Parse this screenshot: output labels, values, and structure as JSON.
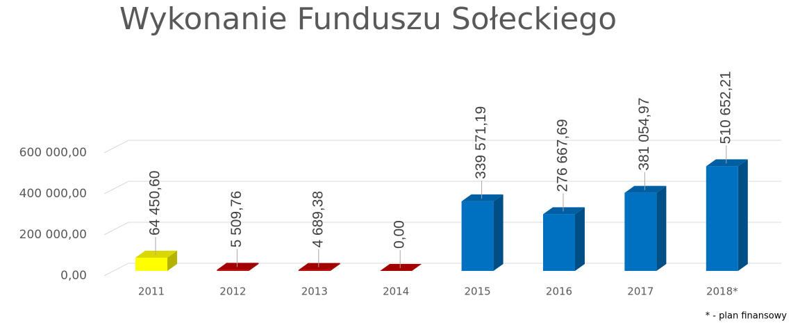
{
  "chart_data": {
    "type": "bar3d",
    "title": "Wykonanie Funduszu Sołeckiego",
    "categories": [
      "2011",
      "2012",
      "2013",
      "2014",
      "2015",
      "2016",
      "2017",
      "2018*"
    ],
    "values": [
      64450.6,
      5509.76,
      4689.38,
      0,
      339571.19,
      276667.69,
      381054.97,
      510652.21
    ],
    "value_labels": [
      "64 450,60",
      "5 509,76",
      "4 689,38",
      "0,00",
      "339 571,19",
      "276 667,69",
      "381 054,97",
      "510 652,21"
    ],
    "colors": [
      "#ffff00",
      "#c00000",
      "#c00000",
      "#c00000",
      "#0070c0",
      "#0070c0",
      "#0070c0",
      "#0070c0"
    ],
    "ylim": [
      0,
      600000
    ],
    "yticks": [
      {
        "value": 0,
        "label": "0,00"
      },
      {
        "value": 200000,
        "label": "200 000,00"
      },
      {
        "value": 400000,
        "label": "400 000,00"
      },
      {
        "value": 600000,
        "label": "600 000,00"
      }
    ],
    "grid": true,
    "note": "* - plan finansowy"
  }
}
